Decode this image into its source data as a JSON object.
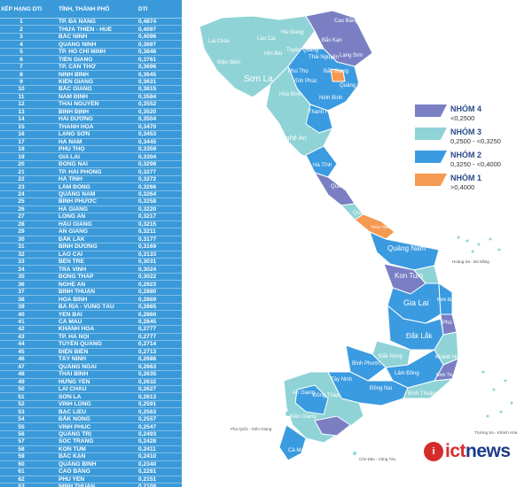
{
  "table": {
    "col_rank": "XẾP HẠNG DTI",
    "col_province": "TỈNH, THÀNH PHỐ",
    "col_score": "DTI",
    "rows": [
      [
        "1",
        "TP. ĐÀ NẴNG",
        "0,4874"
      ],
      [
        "2",
        "THỪA THIÊN - HUẾ",
        "0,4097"
      ],
      [
        "3",
        "BẮC NINH",
        "0,4096"
      ],
      [
        "4",
        "QUẢNG NINH",
        "0,3897"
      ],
      [
        "5",
        "TP. HỒ CHÍ MINH",
        "0,3848"
      ],
      [
        "6",
        "TIỀN GIANG",
        "0,3761"
      ],
      [
        "7",
        "TP. CẦN THƠ",
        "0,3696"
      ],
      [
        "8",
        "NINH BÌNH",
        "0,3645"
      ],
      [
        "9",
        "KIÊN GIANG",
        "0,3631"
      ],
      [
        "10",
        "BẮC GIANG",
        "0,3615"
      ],
      [
        "11",
        "NAM ĐỊNH",
        "0,3584"
      ],
      [
        "12",
        "THÁI NGUYÊN",
        "0,3552"
      ],
      [
        "13",
        "BÌNH ĐỊNH",
        "0,3520"
      ],
      [
        "14",
        "HẢI DƯƠNG",
        "0,3504"
      ],
      [
        "15",
        "THANH HÓA",
        "0,3470"
      ],
      [
        "16",
        "LẠNG SƠN",
        "0,3453"
      ],
      [
        "17",
        "HÀ NAM",
        "0,3445"
      ],
      [
        "18",
        "PHÚ THỌ",
        "0,3359"
      ],
      [
        "19",
        "GIA LAI",
        "0,3304"
      ],
      [
        "20",
        "ĐỒNG NAI",
        "0,3298"
      ],
      [
        "21",
        "TP. HẢI PHÒNG",
        "0,3277"
      ],
      [
        "22",
        "HÀ TĨNH",
        "0,3272"
      ],
      [
        "23",
        "LÂM ĐỒNG",
        "0,3266"
      ],
      [
        "24",
        "QUẢNG NAM",
        "0,3264"
      ],
      [
        "25",
        "BÌNH PHƯỚC",
        "0,3258"
      ],
      [
        "26",
        "HÀ GIANG",
        "0,3220"
      ],
      [
        "27",
        "LONG AN",
        "0,3217"
      ],
      [
        "28",
        "HẬU GIANG",
        "0,3215"
      ],
      [
        "29",
        "AN GIANG",
        "0,3211"
      ],
      [
        "30",
        "ĐẮK LẮK",
        "0,3177"
      ],
      [
        "31",
        "BÌNH DƯƠNG",
        "0,3169"
      ],
      [
        "32",
        "LÀO CAI",
        "0,3133"
      ],
      [
        "33",
        "BẾN TRE",
        "0,3031"
      ],
      [
        "34",
        "TRÀ VINH",
        "0,3024"
      ],
      [
        "35",
        "ĐỒNG THÁP",
        "0,3022"
      ],
      [
        "36",
        "NGHỆ AN",
        "0,2923"
      ],
      [
        "37",
        "BÌNH THUẬN",
        "0,2880"
      ],
      [
        "38",
        "HÒA BÌNH",
        "0,2869"
      ],
      [
        "39",
        "BÀ RỊA - VŨNG TÀU",
        "0,2865"
      ],
      [
        "40",
        "YÊN BÁI",
        "0,2860"
      ],
      [
        "41",
        "CÀ MAU",
        "0,2845"
      ],
      [
        "42",
        "KHÁNH HÒA",
        "0,2777"
      ],
      [
        "43",
        "TP. HÀ NỘI",
        "0,2777"
      ],
      [
        "44",
        "TUYÊN QUANG",
        "0,2714"
      ],
      [
        "45",
        "ĐIỆN BIÊN",
        "0,2713"
      ],
      [
        "46",
        "TÂY NINH",
        "0,2686"
      ],
      [
        "47",
        "QUẢNG NGÃI",
        "0,2663"
      ],
      [
        "48",
        "THÁI BÌNH",
        "0,2635"
      ],
      [
        "49",
        "HƯNG YÊN",
        "0,2632"
      ],
      [
        "50",
        "LAI CHÂU",
        "0,2627"
      ],
      [
        "51",
        "SƠN LA",
        "0,2613"
      ],
      [
        "52",
        "VĨNH LONG",
        "0,2591"
      ],
      [
        "53",
        "BẠC LIÊU",
        "0,2563"
      ],
      [
        "54",
        "ĐẮK NÔNG",
        "0,2557"
      ],
      [
        "55",
        "VĨNH PHÚC",
        "0,2547"
      ],
      [
        "56",
        "QUẢNG TRỊ",
        "0,2493"
      ],
      [
        "57",
        "SÓC TRĂNG",
        "0,2428"
      ],
      [
        "58",
        "KON TUM",
        "0,2411"
      ],
      [
        "59",
        "BẮC KẠN",
        "0,2410"
      ],
      [
        "60",
        "QUẢNG BÌNH",
        "0,2340"
      ],
      [
        "61",
        "CAO BẰNG",
        "0,2281"
      ],
      [
        "62",
        "PHÚ YÊN",
        "0,2151"
      ],
      [
        "63",
        "NINH THUẬN",
        "0,2108"
      ]
    ]
  },
  "legend": [
    {
      "name": "NHÓM 4",
      "range": "<0,2500",
      "color": "#7a7fc4"
    },
    {
      "name": "NHÓM 3",
      "range": "0,2500 - <0,3250",
      "color": "#8fd3d6"
    },
    {
      "name": "NHÓM 2",
      "range": "0,3250 - <0,4000",
      "color": "#3b9be0"
    },
    {
      "name": "NHÓM 1",
      "range": ">0,4000",
      "color": "#f59a52"
    }
  ],
  "map_labels": {
    "cao_bang": "Cao Bằng",
    "lai_chau": "Lai Châu",
    "lao_cai": "Lào Cai",
    "ha_giang": "Hà Giang",
    "bac_kan": "Bắc Kạn",
    "dien_bien": "Điện Biên",
    "yen_bai": "Yên Bái",
    "tuyen_quang": "Tuyên Quang",
    "thai_nguyen": "Thái Nguyên",
    "lang_son": "Lạng Sơn",
    "quang_ninh": "Quảng Ninh",
    "son_la": "Sơn La",
    "phu_tho": "Phú Thọ",
    "vinh_phuc": "Vĩnh Phúc",
    "bac_giang": "Bắc Giang",
    "hoa_binh": "Hòa Bình",
    "ninh_binh": "Ninh Bình",
    "thanh_hoa": "Thanh Hóa",
    "nghe_an": "Nghệ An",
    "ha_tinh": "Hà Tĩnh",
    "quang_binh": "Quảng Bình",
    "quang_tri": "Quảng Trị",
    "hue": "Thừa Thiên Huế",
    "quang_nam": "Quảng Nam",
    "kon_tum": "Kon Tum",
    "gia_lai": "Gia Lai",
    "binh_dinh": "Bình Định",
    "phu_yen": "Phú Yên",
    "dak_lak": "Đắk Lắk",
    "khanh_hoa": "Khánh Hòa",
    "dak_nong": "Đắk Nông",
    "lam_dong": "Lâm Đồng",
    "binh_phuoc": "Bình Phước",
    "ninh_thuan": "Ninh Thuận",
    "dong_nai": "Đồng Nai",
    "binh_thuan": "Bình Thuận",
    "tay_ninh": "Tây Ninh",
    "dong_thap": "Đồng Tháp",
    "an_giang": "An Giang",
    "kien_giang": "Kiên Giang",
    "ca_mau": "Cà Mau",
    "hoang_sa": "Hoàng Sa - Đà Nẵng",
    "truong_sa": "Trường Sa - Khánh Hòa",
    "phu_quoc": "Phú Quốc - Kiên Giang",
    "con_dao": "Côn Đảo - Vũng Tàu"
  },
  "logo": {
    "mark": "i",
    "text_a": "ict",
    "text_b": "news"
  }
}
